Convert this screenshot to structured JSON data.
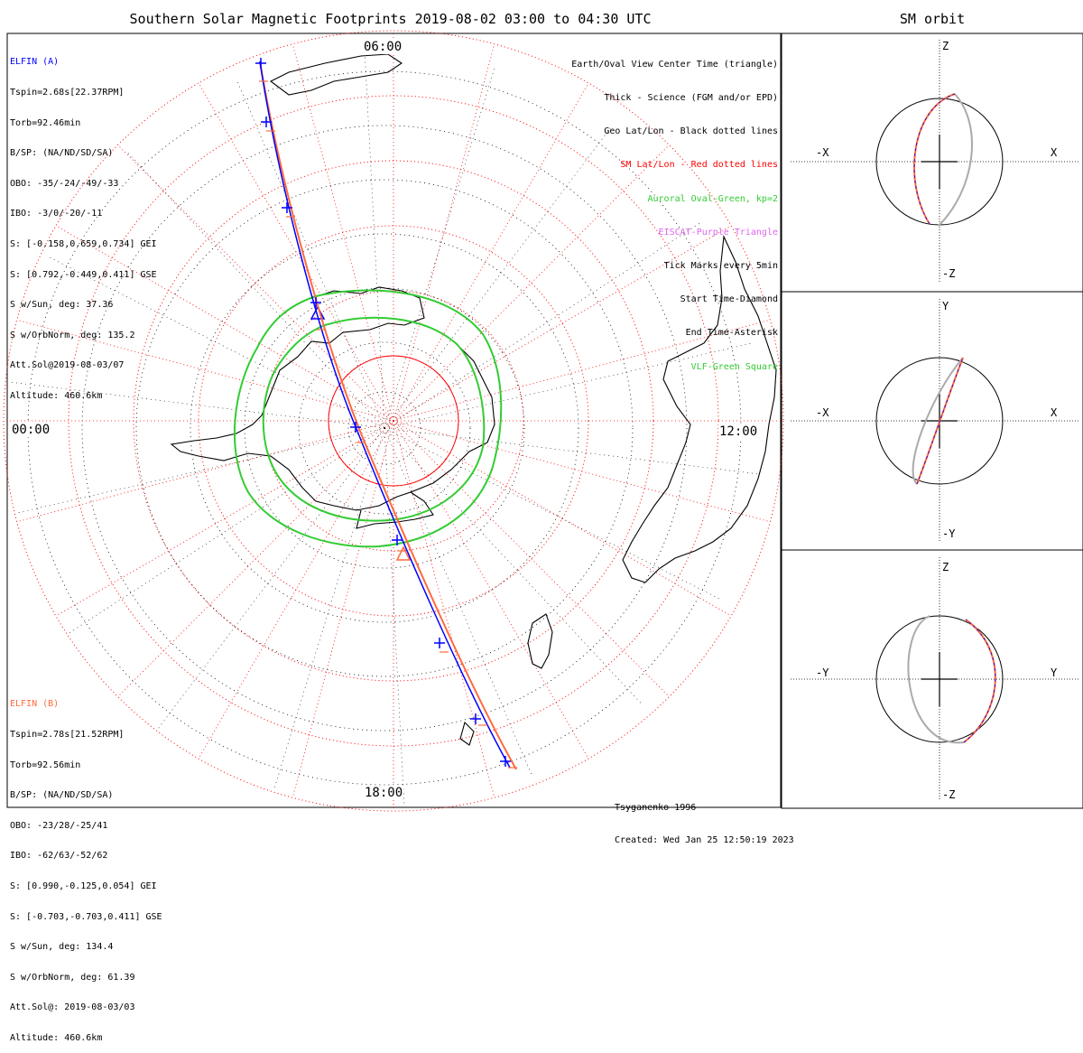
{
  "title": "Southern Solar Magnetic Footprints 2019-08-02 03:00 to 04:30 UTC",
  "orbit_title": "SM orbit",
  "hour_labels": {
    "top": "06:00",
    "left": "00:00",
    "right": "12:00",
    "bottom": "18:00"
  },
  "sc_a": {
    "name": "ELFIN (A)",
    "color": "#0000ff",
    "lines": [
      "Tspin=2.68s[22.37RPM]",
      "Torb=92.46min",
      "B/SP: (NA/ND/SD/SA)",
      "OBO: -35/-24/-49/-33",
      "IBO: -3/0/-20/-11",
      "S: [-0.158,0.659,0.734] GEI",
      "S: [0.792,-0.449,0.411] GSE",
      "S w/Sun, deg: 37.36",
      "S w/OrbNorm, deg: 135.2",
      "Att.Sol@2019-08-03/07",
      "Altitude: 460.6km"
    ]
  },
  "sc_b": {
    "name": "ELFIN (B)",
    "color": "#ff6a3d",
    "lines": [
      "Tspin=2.78s[21.52RPM]",
      "Torb=92.56min",
      "B/SP: (NA/ND/SD/SA)",
      "OBO: -23/28/-25/41",
      "IBO: -62/63/-52/62",
      "S: [0.990,-0.125,0.054] GEI",
      "S: [-0.703,-0.703,0.411] GSE",
      "S w/Sun, deg: 134.4",
      "S w/OrbNorm, deg: 61.39",
      "Att.Sol@: 2019-08-03/03",
      "Altitude: 460.6km"
    ]
  },
  "legend": [
    {
      "text": "Earth/Oval View Center Time (triangle)",
      "color": "#000000"
    },
    {
      "text": "Thick - Science (FGM and/or EPD)",
      "color": "#000000"
    },
    {
      "text": "Geo Lat/Lon - Black dotted lines",
      "color": "#000000"
    },
    {
      "text": "SM Lat/Lon - Red dotted lines",
      "color": "#ff0000"
    },
    {
      "text": "Auroral Oval-Green, kp=2",
      "color": "#33cc33"
    },
    {
      "text": "EISCAT-Purple Triangle",
      "color": "#dd66ee"
    },
    {
      "text": "Tick Marks every 5min",
      "color": "#000000"
    },
    {
      "text": "Start Time-Diamond",
      "color": "#000000"
    },
    {
      "text": "End Time-Asterisk",
      "color": "#000000"
    },
    {
      "text": "VLF-Green Square",
      "color": "#33cc33"
    }
  ],
  "credits": [
    "Tsyganenko-1996",
    "Created: Wed Jan 25 12:50:19 2023"
  ],
  "orbit_panels": [
    {
      "top": "Z",
      "bottom": "-Z",
      "left": "-X",
      "right": "X"
    },
    {
      "top": "Y",
      "bottom": "-Y",
      "left": "-X",
      "right": "X"
    },
    {
      "top": "Z",
      "bottom": "-Z",
      "left": "-Y",
      "right": "Y"
    }
  ],
  "colors": {
    "oval": "#33cc33",
    "sm_grid": "#ff0000",
    "sc_a": "#0000ff",
    "sc_b": "#ff6a3d",
    "orbit_gray": "#aaaaaa"
  }
}
